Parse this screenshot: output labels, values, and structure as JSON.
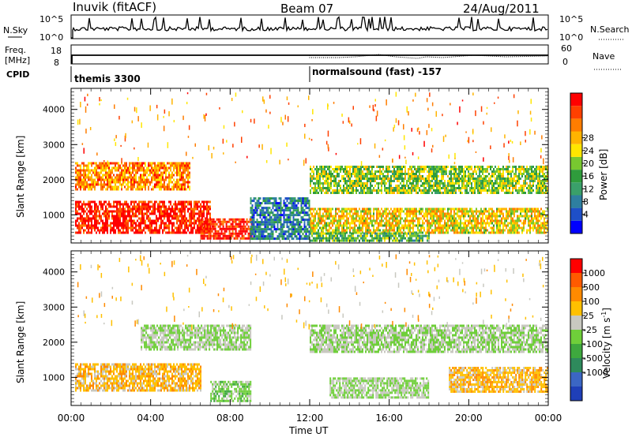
{
  "header": {
    "station": "Inuvik (fitACF)",
    "beam": "Beam 07",
    "date": "24/Aug/2011"
  },
  "top_panels": {
    "nsky_label": "N.Sky",
    "nsky_ticks": [
      "10^5",
      "10^0"
    ],
    "nsearch_label": "N.Search",
    "nsearch_ticks": [
      "10^5",
      "10^0"
    ],
    "freq_label": "Freq.",
    "freq_unit": "[MHz]",
    "freq_ticks": [
      "18",
      "8"
    ],
    "nave_label": "Nave",
    "nave_ticks": [
      "60",
      "0"
    ],
    "cpid_label": "CPID",
    "cpid_segments": [
      {
        "name": "themis 3300",
        "start_h": 0,
        "end_h": 12
      },
      {
        "name": "normalsound (fast) -157",
        "start_h": 12,
        "end_h": 24
      }
    ]
  },
  "axes": {
    "ylabel": "Slant Range [km]",
    "xlabel": "Time UT",
    "xticks": [
      "00:00",
      "04:00",
      "08:00",
      "12:00",
      "16:00",
      "20:00",
      "00:00"
    ],
    "yticks": [
      "1000",
      "2000",
      "3000",
      "4000"
    ]
  },
  "power_bar": {
    "label": "Power [dB]",
    "ticks": [
      "4",
      "8",
      "12",
      "16",
      "20",
      "24",
      "28"
    ],
    "colors": [
      "#0000ff",
      "#1e4fc8",
      "#2e7fa0",
      "#3aa06a",
      "#2f9c3c",
      "#78c830",
      "#ffe600",
      "#ffb400",
      "#ff7d00",
      "#ff4000",
      "#ff0000"
    ]
  },
  "velocity_bar": {
    "label": "Velocity [m s^-1]",
    "ticks": [
      "1000",
      "500",
      "100",
      "25",
      "-25",
      "-100",
      "-500",
      "-1000"
    ],
    "colors": [
      "#1f3fb8",
      "#3b66c4",
      "#2e8a5c",
      "#3ea83e",
      "#6fcf3a",
      "#c8c8c0",
      "#ffc000",
      "#ff8a00",
      "#ff5a00",
      "#ff0000"
    ]
  },
  "chart_data": [
    {
      "type": "heatmap",
      "title": "",
      "xlabel": "Time UT",
      "ylabel": "Slant Range [km]",
      "colorbar_label": "Power [dB]",
      "xlim_hours": [
        0,
        24
      ],
      "ylim_km": [
        200,
        4600
      ],
      "clim_db": [
        0,
        32
      ],
      "regions": [
        {
          "t0": 0.2,
          "t1": 6.0,
          "r0": 1700,
          "r1": 2500,
          "value": 24
        },
        {
          "t0": 0.2,
          "t1": 7.0,
          "r0": 500,
          "r1": 1400,
          "value": 30
        },
        {
          "t0": 6.5,
          "t1": 9.2,
          "r0": 300,
          "r1": 900,
          "value": 30
        },
        {
          "t0": 12.0,
          "t1": 24.0,
          "r0": 1600,
          "r1": 2400,
          "value": 16
        },
        {
          "t0": 12.0,
          "t1": 24.0,
          "r0": 500,
          "r1": 1200,
          "value": 20
        },
        {
          "t0": 12.0,
          "t1": 18.0,
          "r0": 250,
          "r1": 500,
          "value": 14
        },
        {
          "t0": 9.0,
          "t1": 12.0,
          "r0": 300,
          "r1": 1500,
          "value": 8
        }
      ]
    },
    {
      "type": "heatmap",
      "title": "",
      "xlabel": "Time UT",
      "ylabel": "Slant Range [km]",
      "colorbar_label": "Velocity [m s^-1]",
      "xlim_hours": [
        0,
        24
      ],
      "ylim_km": [
        200,
        4600
      ],
      "clim_ms": [
        -1000,
        1000
      ],
      "regions": [
        {
          "t0": 0.2,
          "t1": 6.5,
          "r0": 600,
          "r1": 1400,
          "value": -300
        },
        {
          "t0": 3.5,
          "t1": 9.0,
          "r0": 1800,
          "r1": 2500,
          "value": 0
        },
        {
          "t0": 12.0,
          "t1": 24.0,
          "r0": 1700,
          "r1": 2500,
          "value": 0
        },
        {
          "t0": 19.0,
          "t1": 24.0,
          "r0": 600,
          "r1": 1300,
          "value": -300
        },
        {
          "t0": 7.0,
          "t1": 9.0,
          "r0": 300,
          "r1": 900,
          "value": 80
        },
        {
          "t0": 13.0,
          "t1": 18.0,
          "r0": 400,
          "r1": 1000,
          "value": 0
        }
      ]
    }
  ]
}
